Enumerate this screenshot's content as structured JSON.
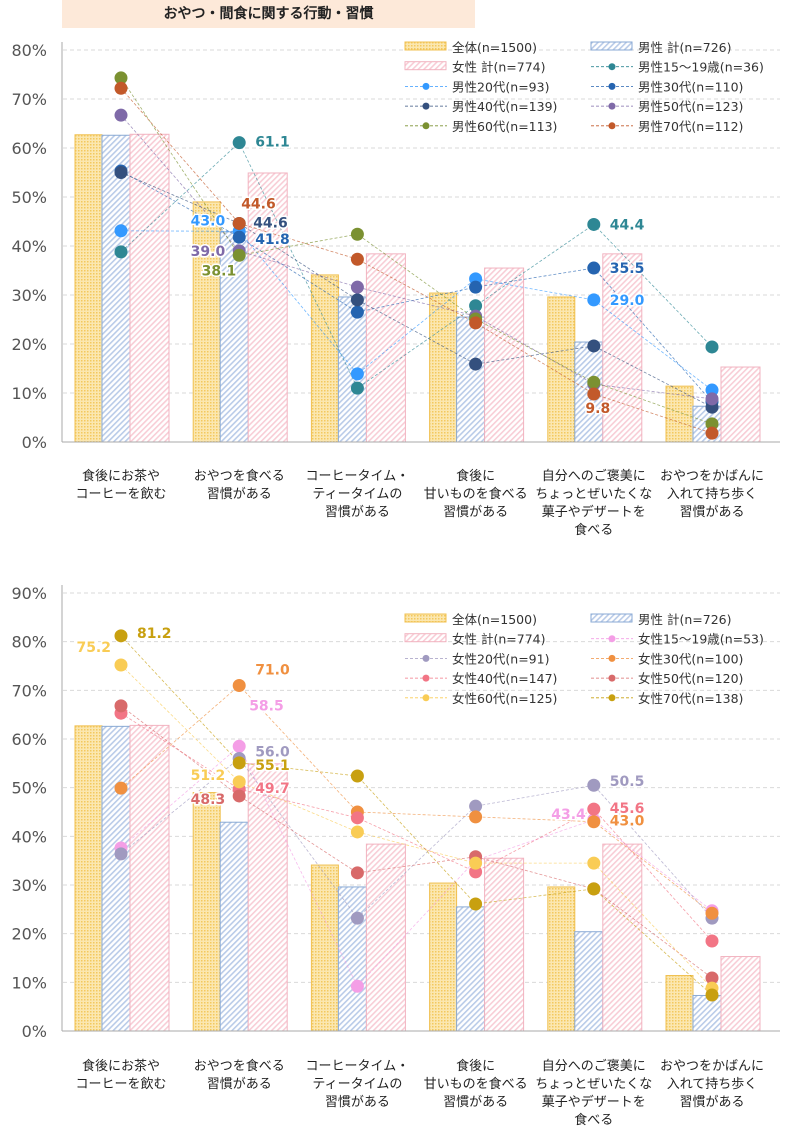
{
  "title": "おやつ・間食に関する行動・習慣",
  "chart_data": [
    {
      "type": "bar+line",
      "title": "",
      "ylim": [
        0,
        80
      ],
      "yticks": [
        0,
        10,
        20,
        30,
        40,
        50,
        60,
        70,
        80
      ],
      "tick_format": "%",
      "grid": true,
      "legend": "top-right",
      "categories": [
        "食後にお茶や\nコーヒーを飲む",
        "おやつを食べる\n習慣がある",
        "コーヒータイム・\nティータイムの\n習慣がある",
        "食後に\n甘いものを食べる\n習慣がある",
        "自分へのご褒美に\nちょっとぜいたくな\n菓子やデザートを\n食べる",
        "おやつをかばんに\n入れて持ち歩く\n習慣がある"
      ],
      "bars": [
        {
          "name": "全体(n=1500)",
          "color": "#f5c95a",
          "values": [
            62.7,
            49.0,
            34.1,
            30.4,
            29.6,
            11.4
          ]
        },
        {
          "name": "男性 計(n=726)",
          "color": "#8aaad4",
          "values": [
            62.6,
            42.9,
            29.6,
            25.5,
            20.4,
            7.3
          ]
        },
        {
          "name": "女性 計(n=774)",
          "color": "#f2b3c0",
          "values": [
            62.8,
            54.9,
            38.4,
            35.5,
            38.4,
            15.3
          ]
        }
      ],
      "series": [
        {
          "name": "男性15～19歳(n=36)",
          "color": "#2e8794",
          "values": [
            38.8,
            61.1,
            11.0,
            27.8,
            44.4,
            19.4
          ],
          "labels": [
            1,
            4
          ]
        },
        {
          "name": "男性20代(n=93)",
          "color": "#3399ff",
          "values": [
            43.1,
            43.0,
            13.9,
            33.3,
            29.0,
            10.6
          ],
          "labels": [
            1,
            4
          ]
        },
        {
          "name": "男性30代(n=110)",
          "color": "#2564b0",
          "values": [
            55.3,
            41.8,
            26.5,
            31.6,
            35.5,
            8.2
          ],
          "labels": [
            1,
            4
          ]
        },
        {
          "name": "男性40代(n=139)",
          "color": "#34507e",
          "values": [
            55.0,
            44.6,
            29.0,
            15.9,
            19.6,
            7.1
          ],
          "labels": [
            1
          ]
        },
        {
          "name": "男性50代(n=123)",
          "color": "#7f6aa8",
          "values": [
            66.7,
            39.0,
            31.6,
            25.7,
            11.8,
            8.8
          ],
          "labels": [
            1
          ]
        },
        {
          "name": "男性60代(n=113)",
          "color": "#7b9131",
          "values": [
            74.3,
            38.1,
            42.4,
            25.1,
            12.2,
            3.7
          ],
          "labels": [
            1
          ]
        },
        {
          "name": "男性70代(n=112)",
          "color": "#c2592a",
          "values": [
            72.2,
            44.6,
            37.3,
            24.3,
            9.8,
            1.8
          ],
          "labels": [
            1,
            4
          ]
        }
      ]
    },
    {
      "type": "bar+line",
      "title": "",
      "ylim": [
        0,
        90
      ],
      "yticks": [
        0,
        10,
        20,
        30,
        40,
        50,
        60,
        70,
        80,
        90
      ],
      "tick_format": "%",
      "grid": true,
      "legend": "top-right",
      "categories": [
        "食後にお茶や\nコーヒーを飲む",
        "おやつを食べる\n習慣がある",
        "コーヒータイム・\nティータイムの\n習慣がある",
        "食後に\n甘いものを食べる\n習慣がある",
        "自分へのご褒美に\nちょっとぜいたくな\n菓子やデザートを\n食べる",
        "おやつをかばんに\n入れて持ち歩く\n習慣がある"
      ],
      "bars": [
        {
          "name": "全体(n=1500)",
          "color": "#f5c95a",
          "values": [
            62.7,
            49.0,
            34.1,
            30.4,
            29.6,
            11.4
          ]
        },
        {
          "name": "男性 計(n=726)",
          "color": "#8aaad4",
          "values": [
            62.6,
            42.9,
            29.6,
            25.5,
            20.4,
            7.3
          ]
        },
        {
          "name": "女性 計(n=774)",
          "color": "#f2b3c0",
          "values": [
            62.8,
            54.9,
            38.4,
            35.5,
            38.4,
            15.3
          ]
        }
      ],
      "series": [
        {
          "name": "女性15～19歳(n=53)",
          "color": "#f49ee6",
          "values": [
            37.6,
            58.5,
            9.2,
            35.1,
            43.4,
            24.7
          ],
          "labels": [
            1,
            4
          ]
        },
        {
          "name": "女性20代(n=91)",
          "color": "#a09ac0",
          "values": [
            36.4,
            56.0,
            23.2,
            46.2,
            50.5,
            23.2
          ],
          "labels": [
            1,
            4
          ]
        },
        {
          "name": "女性30代(n=100)",
          "color": "#f09040",
          "values": [
            49.9,
            71.0,
            45.0,
            44.0,
            43.0,
            24.2
          ],
          "labels": [
            1,
            4
          ]
        },
        {
          "name": "女性40代(n=147)",
          "color": "#f27585",
          "values": [
            65.3,
            49.7,
            43.8,
            32.7,
            45.6,
            18.5
          ],
          "labels": [
            1,
            4
          ]
        },
        {
          "name": "女性50代(n=120)",
          "color": "#d86a6a",
          "values": [
            66.8,
            48.3,
            32.5,
            35.8,
            29.2,
            10.9
          ],
          "labels": [
            1
          ]
        },
        {
          "name": "女性60代(n=125)",
          "color": "#f9cc55",
          "values": [
            75.2,
            51.2,
            40.9,
            34.5,
            34.5,
            8.8
          ],
          "labels": [
            0,
            1
          ]
        },
        {
          "name": "女性70代(n=138)",
          "color": "#c8a010",
          "values": [
            81.2,
            55.1,
            52.4,
            26.1,
            29.2,
            7.4
          ],
          "labels": [
            0,
            1
          ]
        }
      ]
    }
  ]
}
